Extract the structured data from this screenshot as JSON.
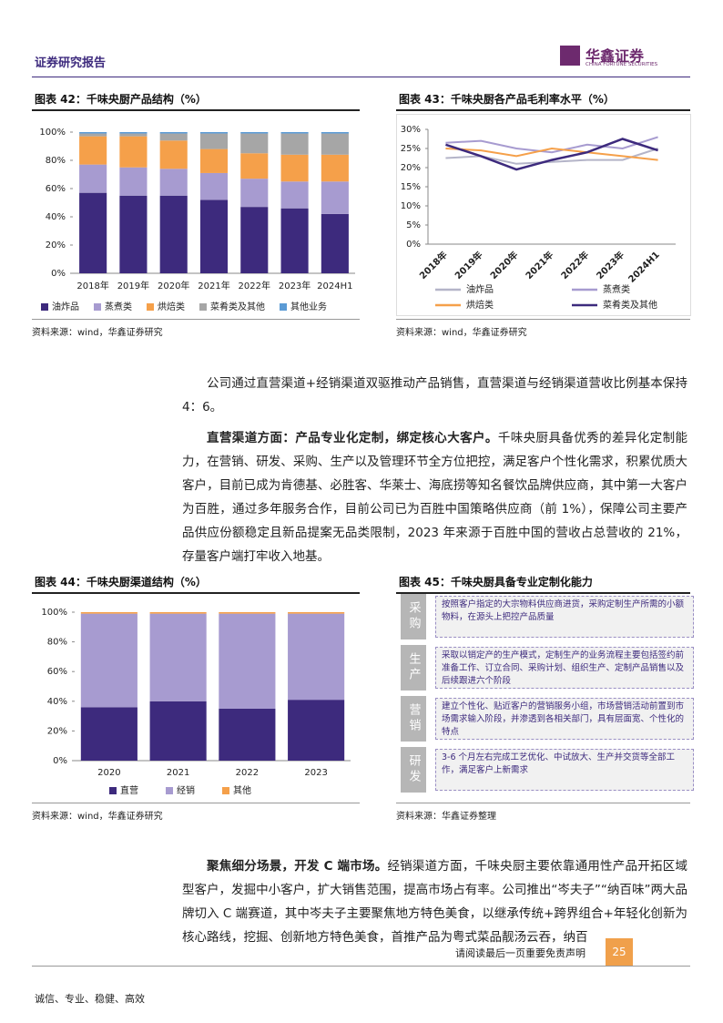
{
  "header": {
    "title": "证券研究报告",
    "logo_cn": "华鑫证券",
    "logo_en": "CHINA FORTUNE SECURITIES"
  },
  "chart_data": [
    {
      "type": "bar",
      "stacked": true,
      "title": "图表 42：千味央厨产品结构（%）",
      "categories": [
        "2018年",
        "2019年",
        "2020年",
        "2021年",
        "2022年",
        "2023年",
        "2024H1"
      ],
      "series": [
        {
          "name": "油炸品",
          "color": "#3d2a7d",
          "values": [
            57,
            55,
            55,
            52,
            47,
            46,
            42
          ]
        },
        {
          "name": "蒸煮类",
          "color": "#a79bd0",
          "values": [
            20,
            20,
            19,
            19,
            20,
            19,
            23
          ]
        },
        {
          "name": "烘焙类",
          "color": "#f5a04a",
          "values": [
            20,
            22,
            20,
            17,
            18,
            19,
            19
          ]
        },
        {
          "name": "菜肴类及其他",
          "color": "#a6a6a6",
          "values": [
            2,
            2,
            5,
            11,
            14,
            15,
            15
          ]
        },
        {
          "name": "其他业务",
          "color": "#5b9bd5",
          "values": [
            1,
            1,
            1,
            1,
            1,
            1,
            1
          ]
        }
      ],
      "ylim": [
        0,
        100
      ],
      "yticks": [
        {
          "value": 0,
          "label": "0%"
        },
        {
          "value": 20,
          "label": "20%"
        },
        {
          "value": 40,
          "label": "40%"
        },
        {
          "value": 60,
          "label": "60%"
        },
        {
          "value": 80,
          "label": "80%"
        },
        {
          "value": 100,
          "label": "100%"
        }
      ],
      "grid": false,
      "source": "资料来源：wind，华鑫证券研究"
    },
    {
      "type": "line",
      "title": "图表 43：千味央厨各产品毛利率水平（%）",
      "categories": [
        "2018年",
        "2019年",
        "2020年",
        "2021年",
        "2022年",
        "2023年",
        "2024H1"
      ],
      "series": [
        {
          "name": "油炸品",
          "color": "#b4b4c8",
          "values": [
            22.5,
            23,
            21,
            21.5,
            22,
            22,
            25
          ]
        },
        {
          "name": "蒸煮类",
          "color": "#a79bd0",
          "values": [
            26.5,
            27,
            25,
            24,
            26,
            25,
            28
          ]
        },
        {
          "name": "烘焙类",
          "color": "#f5a04a",
          "values": [
            25,
            24.5,
            23,
            25,
            24,
            23,
            22
          ]
        },
        {
          "name": "菜肴类及其他",
          "color": "#3d2a7d",
          "values": [
            26,
            23,
            19.5,
            22,
            24,
            27.5,
            24.5
          ]
        }
      ],
      "ylim": [
        0,
        30
      ],
      "yticks": [
        {
          "value": 0,
          "label": "0%"
        },
        {
          "value": 5,
          "label": "5%"
        },
        {
          "value": 10,
          "label": "10%"
        },
        {
          "value": 15,
          "label": "15%"
        },
        {
          "value": 20,
          "label": "20%"
        },
        {
          "value": 25,
          "label": "25%"
        },
        {
          "value": 30,
          "label": "30%"
        }
      ],
      "grid": false,
      "source": "资料来源：wind，华鑫证券研究"
    },
    {
      "type": "bar",
      "stacked": true,
      "title": "图表 44：千味央厨渠道结构（%）",
      "categories": [
        "2020",
        "2021",
        "2022",
        "2023"
      ],
      "series": [
        {
          "name": "直营",
          "color": "#3d2a7d",
          "values": [
            36,
            40,
            35,
            41
          ]
        },
        {
          "name": "经销",
          "color": "#a79bd0",
          "values": [
            63,
            59,
            64,
            58
          ]
        },
        {
          "name": "其他",
          "color": "#f5a04a",
          "values": [
            1,
            1,
            1,
            1
          ]
        }
      ],
      "ylim": [
        0,
        100
      ],
      "yticks": [
        {
          "value": 0,
          "label": "0%"
        },
        {
          "value": 20,
          "label": "20%"
        },
        {
          "value": 40,
          "label": "40%"
        },
        {
          "value": 60,
          "label": "60%"
        },
        {
          "value": 80,
          "label": "80%"
        },
        {
          "value": 100,
          "label": "100%"
        }
      ],
      "grid": false,
      "source": "资料来源：wind，华鑫证券研究"
    }
  ],
  "figure45": {
    "title": "图表 45：千味央厨具备专业定制化能力",
    "rows": [
      {
        "label": "采购",
        "text": "按照客户指定的大宗物料供应商进货，采购定制生产所需的小额物料，在源头上把控产品质量"
      },
      {
        "label": "生产",
        "text": "采取以销定产的生产模式，定制生产的业务流程主要包括签约前准备工作、订立合同、采购计划、组织生产、定制产品销售以及后续跟进六个阶段"
      },
      {
        "label": "营销",
        "text": "建立个性化、贴近客户的营销服务小组，市场营销活动前置到市场需求输入阶段，并渗透到各相关部门，具有层面宽、个性化的特点"
      },
      {
        "label": "研发",
        "text": "3-6 个月左右完成工艺优化、中试放大、生产并交货等全部工作，满足客户上新需求"
      }
    ],
    "source": "资料来源：华鑫证券整理"
  },
  "paragraphs": [
    {
      "text": "公司通过直营渠道+经销渠道双驱推动产品销售，直营渠道与经销渠道营收比例基本保持4：6。"
    },
    {
      "lead": "直营渠道方面：产品专业化定制，绑定核心大客户。",
      "text": "千味央厨具备优秀的差异化定制能力，在营销、研发、采购、生产以及管理环节全方位把控，满足客户个性化需求，积累优质大客户，目前已成为肯德基、必胜客、华莱士、海底捞等知名餐饮品牌供应商，其中第一大客户为百胜，通过多年服务合作，目前公司已为百胜中国策略供应商（前 1%），保障公司主要产品供应份额稳定且新品提案无品类限制，2023 年来源于百胜中国的营收占总营收的 21%，存量客户端打牢收入地基。"
    },
    {
      "lead": "聚焦细分场景，开发 C 端市场。",
      "text": "经销渠道方面，千味央厨主要依靠通用性产品开拓区域型客户，发掘中小客户，扩大销售范围，提高市场占有率。公司推出“岑夫子”“纳百味”两大品牌切入 C 端赛道，其中岑夫子主要聚焦地方特色美食，以继承传统+跨界组合+年轻化创新为核心路线，挖掘、创新地方特色美食，首推产品为粤式菜品靓汤云吞，纳百"
    }
  ],
  "footer": {
    "note": "请阅读最后一页重要免责声明",
    "page": "25",
    "motto": "诚信、专业、稳健、高效"
  }
}
